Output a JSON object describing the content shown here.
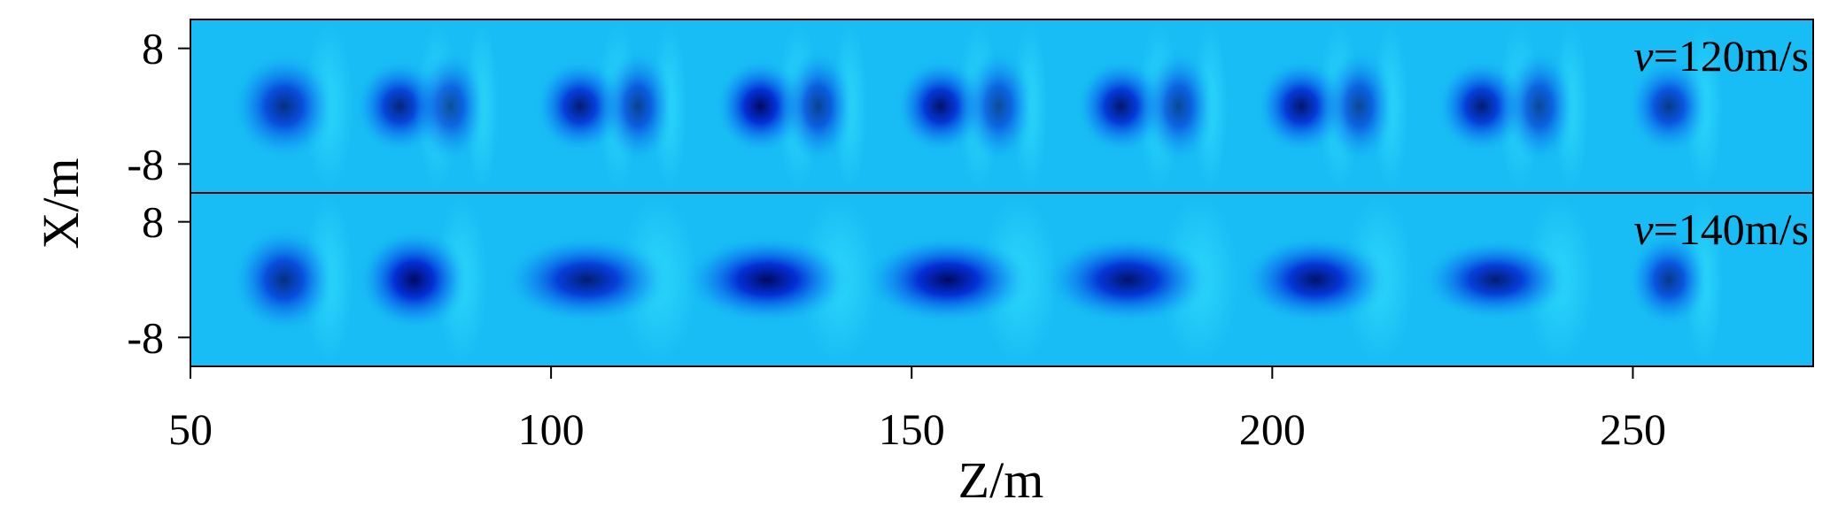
{
  "chart_data": {
    "type": "heatmap",
    "xlabel": "Z/m",
    "ylabel": "X/m",
    "xlim": [
      50,
      275
    ],
    "xticks": [
      50,
      100,
      150,
      200,
      250
    ],
    "grid": false,
    "panels": [
      {
        "label_italic": "v",
        "label_rest": "=120m/s",
        "ylim": [
          -12,
          12
        ],
        "yticks": [
          8,
          -8
        ],
        "ytick_labels": [
          "8",
          "-8"
        ],
        "spots": [
          {
            "z": 63,
            "x": 0,
            "amp": 0.75,
            "sz": 2.8,
            "sx": 3.4
          },
          {
            "z": 79,
            "x": 0,
            "amp": 0.8,
            "sz": 2.4,
            "sx": 3.0
          },
          {
            "z": 86,
            "x": 0,
            "amp": 0.6,
            "sz": 2.0,
            "sx": 3.6
          },
          {
            "z": 104,
            "x": 0,
            "amp": 0.85,
            "sz": 2.4,
            "sx": 3.0
          },
          {
            "z": 112,
            "x": 0,
            "amp": 0.65,
            "sz": 2.0,
            "sx": 3.6
          },
          {
            "z": 129,
            "x": 0,
            "amp": 0.95,
            "sz": 2.4,
            "sx": 3.0
          },
          {
            "z": 137,
            "x": 0,
            "amp": 0.65,
            "sz": 2.0,
            "sx": 3.6
          },
          {
            "z": 154,
            "x": 0,
            "amp": 0.9,
            "sz": 2.4,
            "sx": 3.0
          },
          {
            "z": 162,
            "x": 0,
            "amp": 0.6,
            "sz": 2.0,
            "sx": 3.6
          },
          {
            "z": 179,
            "x": 0,
            "amp": 0.88,
            "sz": 2.4,
            "sx": 3.0
          },
          {
            "z": 187,
            "x": 0,
            "amp": 0.62,
            "sz": 2.0,
            "sx": 3.6
          },
          {
            "z": 204,
            "x": 0,
            "amp": 0.88,
            "sz": 2.4,
            "sx": 3.0
          },
          {
            "z": 212,
            "x": 0,
            "amp": 0.62,
            "sz": 2.0,
            "sx": 3.6
          },
          {
            "z": 229,
            "x": 0,
            "amp": 0.85,
            "sz": 2.4,
            "sx": 3.0
          },
          {
            "z": 237,
            "x": 0,
            "amp": 0.62,
            "sz": 2.0,
            "sx": 3.6
          },
          {
            "z": 255,
            "x": 0,
            "amp": 0.7,
            "sz": 2.2,
            "sx": 3.0
          }
        ]
      },
      {
        "label_italic": "v",
        "label_rest": "=140m/s",
        "ylim": [
          -12,
          12
        ],
        "yticks": [
          8,
          -8
        ],
        "ytick_labels": [
          "8",
          "-8"
        ],
        "spots": [
          {
            "z": 63,
            "x": 0,
            "amp": 0.75,
            "sz": 2.8,
            "sx": 3.4
          },
          {
            "z": 81,
            "x": 0,
            "amp": 0.95,
            "sz": 3.0,
            "sx": 3.2
          },
          {
            "z": 105,
            "x": 0,
            "amp": 0.85,
            "sz": 4.5,
            "sx": 2.8
          },
          {
            "z": 130,
            "x": 0,
            "amp": 0.95,
            "sz": 4.5,
            "sx": 2.8
          },
          {
            "z": 155,
            "x": 0,
            "amp": 0.95,
            "sz": 4.5,
            "sx": 2.8
          },
          {
            "z": 180,
            "x": 0,
            "amp": 0.9,
            "sz": 4.5,
            "sx": 2.8
          },
          {
            "z": 206,
            "x": 0,
            "amp": 0.9,
            "sz": 4.0,
            "sx": 2.8
          },
          {
            "z": 231,
            "x": 0,
            "amp": 0.85,
            "sz": 4.0,
            "sx": 2.6
          },
          {
            "z": 255,
            "x": 0,
            "amp": 0.7,
            "sz": 2.2,
            "sx": 3.0
          }
        ]
      }
    ]
  }
}
